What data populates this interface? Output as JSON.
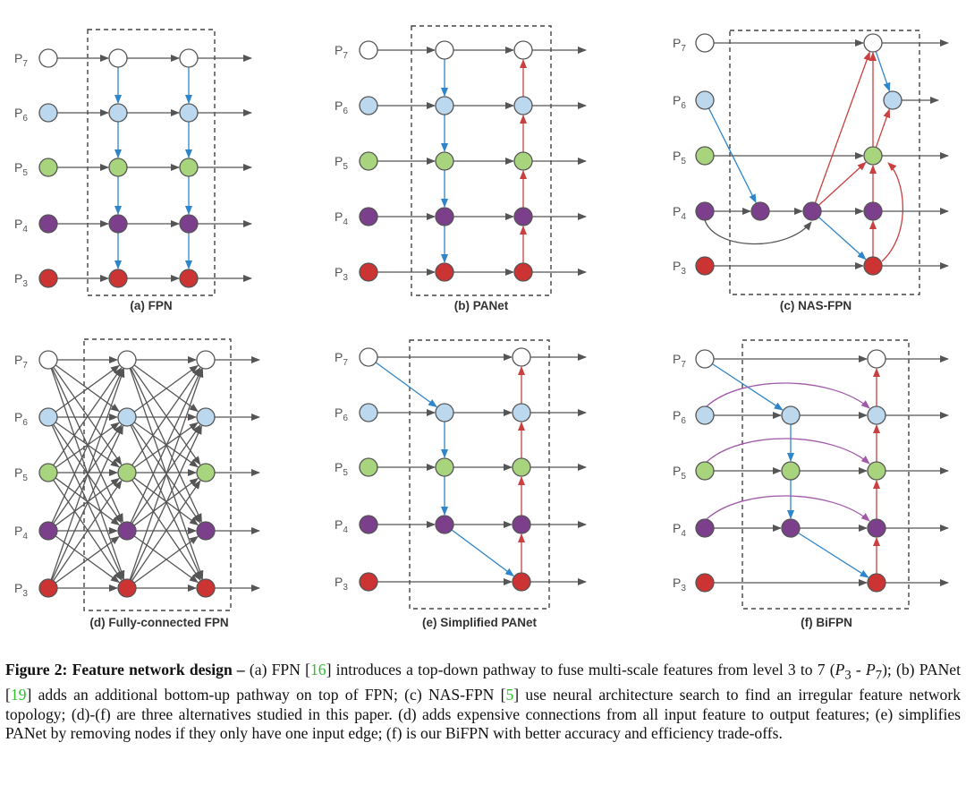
{
  "colors": {
    "p7": "#ffffff",
    "p6": "#bcd8ee",
    "p5": "#a9d47e",
    "p4": "#7b3f8c",
    "p3": "#cc3333",
    "node_stroke": "#555555",
    "arrow_gray": "#555555",
    "arrow_blue": "#2f85c9",
    "arrow_red": "#c94040",
    "arrow_purple": "#a05aa8",
    "box_dash": "#444444",
    "cite": "#2fbf2f"
  },
  "panels": [
    {
      "id": "a",
      "name": "FPN",
      "caption": "(a) FPN"
    },
    {
      "id": "b",
      "name": "PANet",
      "caption": "(b) PANet"
    },
    {
      "id": "c",
      "name": "NAS-FPN",
      "caption": "(c) NAS-FPN"
    },
    {
      "id": "d",
      "name": "Fully-connected FPN",
      "caption": "(d) Fully-connected FPN"
    },
    {
      "id": "e",
      "name": "Simplified PANet",
      "caption": "(e) Simplified PANet"
    },
    {
      "id": "f",
      "name": "BiFPN",
      "caption": "(f) BiFPN"
    }
  ],
  "levels": [
    {
      "key": "p7",
      "base": "P",
      "sub": "7"
    },
    {
      "key": "p6",
      "base": "P",
      "sub": "6"
    },
    {
      "key": "p5",
      "base": "P",
      "sub": "5"
    },
    {
      "key": "p4",
      "base": "P",
      "sub": "4"
    },
    {
      "key": "p3",
      "base": "P",
      "sub": "3"
    }
  ],
  "caption": {
    "label": "Figure 2:",
    "title": "Feature network design –",
    "s1": " (a) FPN [",
    "c1": "16",
    "s2": "] introduces a top-down pathway to fuse multi-scale features from level 3 to 7 (",
    "m1": "P",
    "m1sub": "3",
    "s3": " - ",
    "m2": "P",
    "m2sub": "7",
    "s4": "); (b) PANet [",
    "c2": "19",
    "s5": "] adds an additional bottom-up pathway on top of FPN; (c) NAS-FPN [",
    "c3": "5",
    "s6": "] use neural architecture search to find an irregular feature network topology; (d)-(f) are three alternatives studied in this paper. (d) adds expensive connections from all input feature to output features; (e) simplifies PANet by removing nodes if they only have one input edge; (f) is our BiFPN with better accuracy and efficiency trade-offs."
  }
}
